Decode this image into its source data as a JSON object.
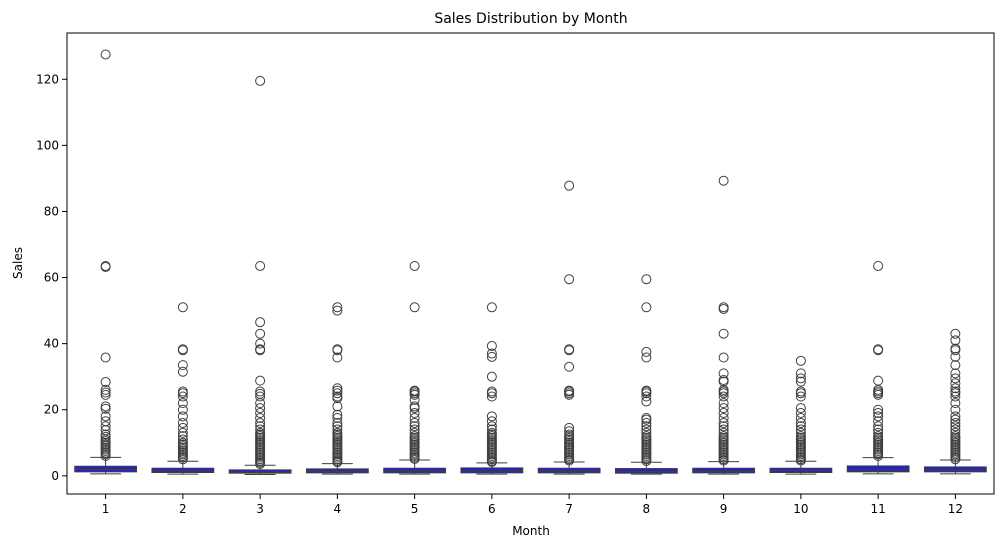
{
  "chart_data": {
    "type": "box",
    "title": "Sales Distribution by Month",
    "xlabel": "Month",
    "ylabel": "Sales",
    "categories": [
      "1",
      "2",
      "3",
      "4",
      "5",
      "6",
      "7",
      "8",
      "9",
      "10",
      "11",
      "12"
    ],
    "ylim": [
      -5.5,
      134
    ],
    "yticks": [
      0,
      20,
      40,
      60,
      80,
      100,
      120
    ],
    "grid": false,
    "colors": {
      "box_fill": "#1f1fe0",
      "box_edge": "#3f3f3f",
      "outlier_edge": "#3f3f3f"
    },
    "boxes": [
      {
        "month": "1",
        "whislo": 0.6,
        "q1": 1.2,
        "med": 2.0,
        "q3": 2.9,
        "whishi": 5.6,
        "fliers": [
          127.5,
          63.5,
          63.2,
          35.8,
          28.4,
          26.0,
          25.2,
          24.5,
          21.0,
          20.3,
          18.0,
          16.5,
          15.0,
          13.8,
          12.5,
          11.8,
          11.0,
          10.5,
          10.0,
          9.5,
          9.0,
          8.5,
          8.0,
          7.5,
          7.0,
          6.5,
          6.0
        ]
      },
      {
        "month": "2",
        "whislo": 0.5,
        "q1": 1.0,
        "med": 1.5,
        "q3": 2.3,
        "whishi": 4.4,
        "fliers": [
          51.0,
          38.3,
          38.0,
          33.5,
          31.5,
          25.5,
          25.0,
          24.0,
          22.0,
          20.0,
          18.0,
          16.0,
          14.5,
          13.0,
          12.0,
          11.0,
          10.0,
          9.5,
          9.0,
          8.5,
          8.0,
          7.5,
          7.0,
          6.5,
          6.0,
          5.5,
          5.0
        ]
      },
      {
        "month": "3",
        "whislo": 0.4,
        "q1": 0.8,
        "med": 1.1,
        "q3": 1.8,
        "whishi": 3.2,
        "fliers": [
          119.5,
          63.5,
          46.5,
          43.0,
          40.0,
          38.3,
          38.0,
          28.8,
          25.5,
          24.8,
          24.0,
          22.0,
          20.5,
          19.0,
          17.5,
          16.0,
          15.0,
          14.0,
          13.0,
          12.5,
          12.0,
          11.5,
          11.0,
          10.5,
          10.0,
          9.5,
          9.0,
          8.5,
          8.0,
          7.5,
          7.0,
          6.5,
          6.0,
          5.5,
          5.0,
          4.5,
          4.0,
          3.6
        ]
      },
      {
        "month": "4",
        "whislo": 0.5,
        "q1": 0.9,
        "med": 1.4,
        "q3": 2.1,
        "whishi": 3.7,
        "fliers": [
          51.0,
          50.0,
          38.3,
          38.0,
          35.8,
          26.5,
          25.8,
          25.0,
          24.0,
          23.5,
          21.0,
          18.5,
          17.5,
          16.0,
          15.0,
          14.0,
          13.0,
          12.5,
          12.0,
          11.5,
          11.0,
          10.5,
          10.0,
          9.5,
          9.0,
          8.5,
          8.0,
          7.5,
          7.0,
          6.5,
          6.0,
          5.5,
          5.0,
          4.5,
          4.1
        ]
      },
      {
        "month": "5",
        "whislo": 0.5,
        "q1": 0.9,
        "med": 1.5,
        "q3": 2.3,
        "whishi": 4.8,
        "fliers": [
          63.5,
          51.0,
          25.8,
          25.5,
          25.0,
          24.5,
          23.0,
          21.0,
          20.5,
          19.0,
          17.5,
          16.0,
          15.0,
          14.0,
          13.0,
          12.0,
          11.5,
          11.0,
          10.5,
          10.0,
          9.5,
          9.0,
          8.5,
          8.0,
          7.5,
          7.0,
          6.5,
          6.0,
          5.5,
          5.1
        ]
      },
      {
        "month": "6",
        "whislo": 0.5,
        "q1": 0.9,
        "med": 1.5,
        "q3": 2.4,
        "whishi": 3.9,
        "fliers": [
          51.0,
          39.3,
          37.0,
          36.0,
          30.0,
          25.5,
          25.0,
          24.0,
          18.0,
          16.5,
          15.0,
          14.0,
          13.0,
          12.5,
          12.0,
          11.5,
          11.0,
          10.5,
          10.0,
          9.5,
          9.0,
          8.5,
          8.0,
          7.5,
          7.0,
          6.5,
          6.0,
          5.5,
          5.0,
          4.5,
          4.2
        ]
      },
      {
        "month": "7",
        "whislo": 0.5,
        "q1": 0.9,
        "med": 1.5,
        "q3": 2.3,
        "whishi": 4.2,
        "fliers": [
          87.8,
          59.5,
          38.3,
          38.0,
          33.0,
          25.8,
          25.5,
          25.0,
          24.5,
          14.5,
          13.5,
          12.5,
          12.0,
          11.5,
          11.0,
          10.5,
          10.0,
          9.5,
          9.0,
          8.5,
          8.0,
          7.5,
          7.0,
          6.5,
          6.0,
          5.5,
          5.0,
          4.6
        ]
      },
      {
        "month": "8",
        "whislo": 0.5,
        "q1": 0.8,
        "med": 1.3,
        "q3": 2.2,
        "whishi": 4.1,
        "fliers": [
          59.5,
          51.0,
          37.5,
          35.8,
          25.8,
          25.5,
          25.0,
          24.0,
          22.5,
          17.5,
          17.0,
          16.0,
          15.0,
          14.0,
          13.0,
          12.0,
          11.5,
          11.0,
          10.5,
          10.0,
          9.5,
          9.0,
          8.5,
          8.0,
          7.5,
          7.0,
          6.5,
          6.0,
          5.5,
          5.0,
          4.5
        ]
      },
      {
        "month": "9",
        "whislo": 0.5,
        "q1": 0.9,
        "med": 1.4,
        "q3": 2.3,
        "whishi": 4.3,
        "fliers": [
          89.3,
          51.0,
          50.5,
          43.0,
          35.8,
          31.0,
          29.0,
          28.5,
          26.0,
          25.5,
          25.0,
          24.0,
          22.0,
          20.5,
          19.0,
          17.5,
          16.0,
          15.0,
          14.0,
          13.0,
          12.0,
          11.5,
          11.0,
          10.5,
          10.0,
          9.5,
          9.0,
          8.5,
          8.0,
          7.5,
          7.0,
          6.5,
          6.0,
          5.5,
          5.0,
          4.6
        ]
      },
      {
        "month": "10",
        "whislo": 0.5,
        "q1": 1.0,
        "med": 1.6,
        "q3": 2.3,
        "whishi": 4.4,
        "fliers": [
          34.8,
          31.0,
          29.5,
          28.5,
          25.5,
          25.0,
          24.0,
          20.5,
          19.0,
          17.5,
          16.0,
          15.0,
          14.0,
          13.0,
          12.0,
          11.5,
          11.0,
          10.5,
          10.0,
          9.5,
          9.0,
          8.5,
          8.0,
          7.5,
          7.0,
          6.5,
          6.0,
          5.5,
          5.0,
          4.6
        ]
      },
      {
        "month": "11",
        "whislo": 0.6,
        "q1": 1.2,
        "med": 1.8,
        "q3": 3.0,
        "whishi": 5.5,
        "fliers": [
          63.5,
          38.3,
          38.0,
          28.8,
          26.0,
          25.5,
          25.0,
          24.5,
          20.0,
          19.0,
          18.0,
          16.5,
          15.0,
          14.0,
          13.0,
          12.0,
          11.5,
          11.0,
          10.5,
          10.0,
          9.5,
          9.0,
          8.5,
          8.0,
          7.5,
          7.0,
          6.5,
          6.0
        ]
      },
      {
        "month": "12",
        "whislo": 0.6,
        "q1": 1.2,
        "med": 1.8,
        "q3": 2.7,
        "whishi": 4.8,
        "fliers": [
          43.0,
          41.0,
          38.5,
          38.0,
          36.0,
          33.5,
          31.0,
          29.5,
          28.0,
          26.5,
          25.5,
          25.0,
          24.0,
          22.0,
          20.0,
          18.0,
          17.0,
          16.0,
          15.0,
          14.0,
          13.0,
          12.0,
          11.5,
          11.0,
          10.5,
          10.0,
          9.5,
          9.0,
          8.5,
          8.0,
          7.5,
          7.0,
          6.5,
          6.0,
          5.5,
          5.0
        ]
      }
    ]
  }
}
